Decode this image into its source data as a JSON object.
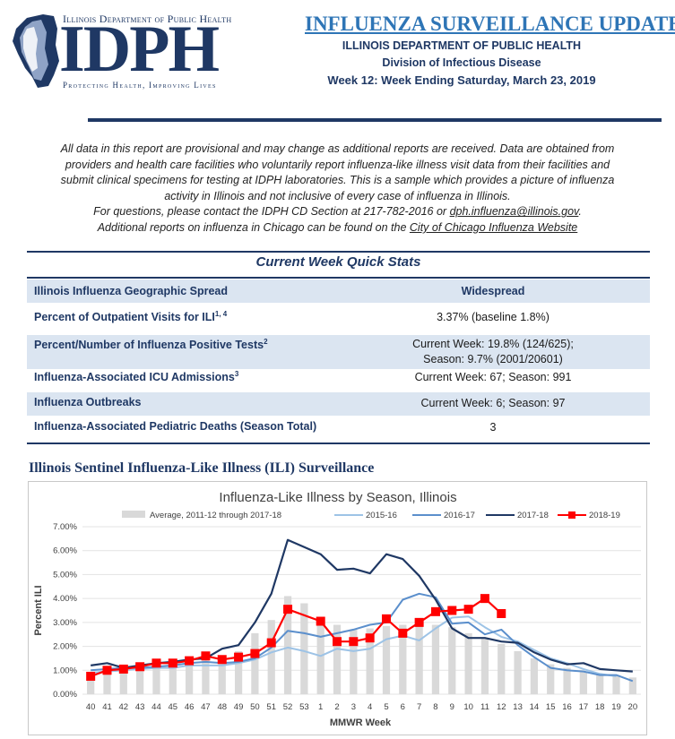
{
  "header": {
    "agency_top": "Illinois Department of Public Health",
    "logo_text": "IDPH",
    "tagline": "Protecting Health, Improving Lives",
    "title": "INFLUENZA SURVEILLANCE UPDATE",
    "org": "ILLINOIS DEPARTMENT OF PUBLIC HEALTH",
    "division": "Division of Infectious Disease",
    "week": "Week 12: Week Ending Saturday, March 23, 2019"
  },
  "disclaimer": {
    "line1": "All data in this report are provisional and may change as additional reports are received. Data are obtained from",
    "line2": "providers and health care facilities who voluntarily report influenza-like illness visit data from their facilities and",
    "line3": "submit clinical specimens for testing at IDPH laboratories.  This is a sample which provides a picture of influenza",
    "line4": "activity in Illinois and not inclusive of every case of influenza in Illinois.",
    "line5_pre": "For questions, please contact the IDPH CD Section at 217-782-2016 or ",
    "email": "dph.influenza@illinois.gov",
    "line5_post": ".",
    "line6_pre": "Additional reports on influenza in Chicago can be found on the ",
    "chicago_link": "City of Chicago Influenza Website"
  },
  "quick_stats": {
    "title": "Current Week Quick Stats",
    "rows": [
      {
        "label": "Illinois Influenza Geographic Spread",
        "sup": "",
        "value": "Widespread",
        "value2": ""
      },
      {
        "label": "Percent of Outpatient Visits for ILI",
        "sup": "1, 4",
        "value": "3.37% (baseline 1.8%)",
        "value2": ""
      },
      {
        "label": "Percent/Number of Influenza Positive Tests",
        "sup": "2",
        "value": "Current Week: 19.8% (124/625);",
        "value2": "Season: 9.7% (2001/20601)"
      },
      {
        "label": "Influenza-Associated ICU Admissions",
        "sup": "3",
        "value": "Current Week: 67; Season: 991",
        "value2": ""
      },
      {
        "label": "Influenza Outbreaks",
        "sup": "",
        "value": "Current Week: 6; Season: 97",
        "value2": ""
      },
      {
        "label": "Influenza-Associated Pediatric Deaths (Season Total)",
        "sup": "",
        "value": "3",
        "value2": ""
      }
    ]
  },
  "section_title": "Illinois Sentinel Influenza-Like Illness (ILI) Surveillance",
  "chart_data": {
    "type": "line",
    "title": "Influenza-Like Illness by Season, Illinois",
    "xlabel": "MMWR Week",
    "ylabel": "Percent ILI",
    "ylim": [
      0,
      7
    ],
    "yticks": [
      "0.00%",
      "1.00%",
      "2.00%",
      "3.00%",
      "4.00%",
      "5.00%",
      "6.00%",
      "7.00%"
    ],
    "categories": [
      "40",
      "41",
      "42",
      "43",
      "44",
      "45",
      "46",
      "47",
      "48",
      "49",
      "50",
      "51",
      "52",
      "53",
      "1",
      "2",
      "3",
      "4",
      "5",
      "6",
      "7",
      "8",
      "9",
      "10",
      "11",
      "12",
      "13",
      "14",
      "15",
      "16",
      "17",
      "18",
      "19",
      "20"
    ],
    "legend_position": "top",
    "bar_series": {
      "name": "Average, 2011-12 through 2017-18",
      "color": "#d9d9d9",
      "values": [
        0.9,
        1.0,
        1.1,
        1.15,
        1.2,
        1.25,
        1.35,
        1.45,
        1.6,
        1.8,
        2.55,
        3.1,
        4.1,
        3.8,
        3.0,
        2.9,
        2.7,
        2.75,
        2.85,
        2.9,
        3.0,
        2.9,
        2.8,
        2.55,
        2.35,
        2.1,
        1.8,
        1.5,
        1.25,
        1.1,
        0.95,
        0.85,
        0.8,
        0.7
      ]
    },
    "series": [
      {
        "name": "2015-16",
        "color": "#9dc3e6",
        "width": 2,
        "marker": false,
        "values": [
          0.9,
          0.95,
          1.0,
          1.05,
          1.1,
          1.1,
          1.2,
          1.2,
          1.2,
          1.3,
          1.45,
          1.75,
          1.95,
          1.8,
          1.6,
          1.9,
          1.8,
          1.9,
          2.3,
          2.45,
          2.25,
          2.75,
          3.2,
          3.25,
          2.8,
          2.4,
          2.2,
          1.85,
          1.5,
          1.3,
          1.05,
          0.85,
          0.75,
          null
        ]
      },
      {
        "name": "2016-17",
        "color": "#5b8fcc",
        "width": 2,
        "marker": false,
        "values": [
          1.0,
          1.05,
          1.1,
          1.1,
          1.15,
          1.2,
          1.3,
          1.35,
          1.3,
          1.35,
          1.5,
          1.95,
          2.65,
          2.55,
          2.4,
          2.55,
          2.7,
          2.9,
          3.0,
          3.95,
          4.2,
          4.05,
          2.95,
          3.0,
          2.5,
          2.7,
          2.05,
          1.55,
          1.1,
          1.0,
          0.95,
          0.8,
          0.8,
          0.55
        ]
      },
      {
        "name": "2017-18",
        "color": "#1f3864",
        "width": 2.2,
        "marker": false,
        "values": [
          1.2,
          1.3,
          1.1,
          1.2,
          1.3,
          1.35,
          1.45,
          1.5,
          1.9,
          2.05,
          3.0,
          4.2,
          6.45,
          6.15,
          5.85,
          5.2,
          5.25,
          5.05,
          5.85,
          5.65,
          4.95,
          3.95,
          2.75,
          2.35,
          2.35,
          2.2,
          2.15,
          1.75,
          1.45,
          1.25,
          1.3,
          1.05,
          1.0,
          0.95
        ]
      },
      {
        "name": "2018-19",
        "color": "#ff0000",
        "width": 2.2,
        "marker": true,
        "values": [
          0.75,
          1.0,
          1.05,
          1.15,
          1.3,
          1.3,
          1.4,
          1.6,
          1.45,
          1.55,
          1.7,
          2.15,
          3.55,
          null,
          3.05,
          2.2,
          2.2,
          2.35,
          3.15,
          2.55,
          3.0,
          3.45,
          3.5,
          3.55,
          4.0,
          3.37,
          null,
          null,
          null,
          null,
          null,
          null,
          null,
          null
        ]
      }
    ]
  }
}
